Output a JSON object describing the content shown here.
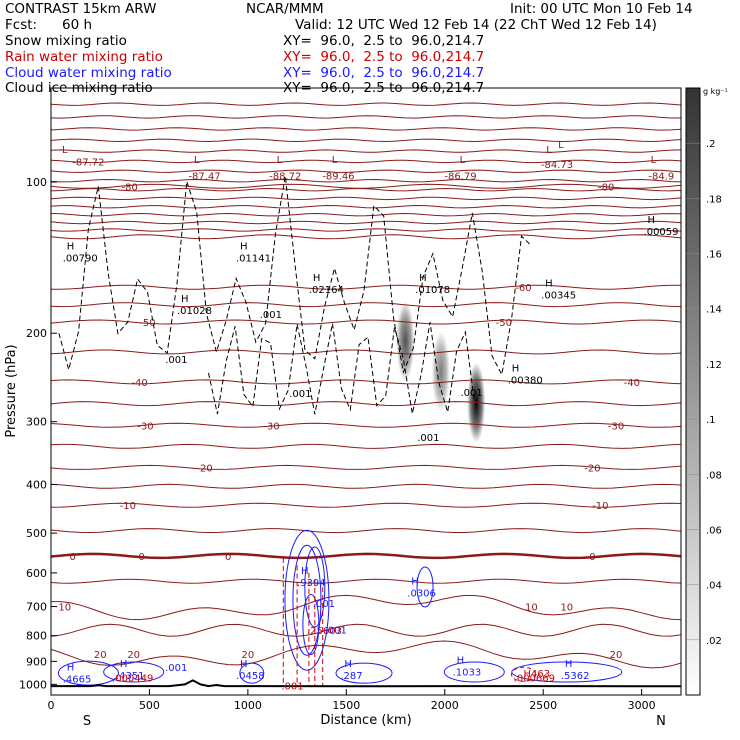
{
  "header": {
    "model": "CONTRAST 15km ARW",
    "center": "NCAR/MMM",
    "init": "Init: 00 UTC Mon 10 Feb 14",
    "fcst_label": "Fcst:",
    "fcst_value": "60 h",
    "valid": "Valid: 12 UTC Wed 12 Feb 14 (22 ChT Wed 12 Feb 14)",
    "fields": [
      {
        "name": "Snow mixing ratio",
        "xy": "XY=  96.0,  2.5 to  96.0,214.7"
      },
      {
        "name": "Rain water mixing ratio",
        "xy": "XY=  96.0,  2.5 to  96.0,214.7"
      },
      {
        "name": "Cloud water mixing ratio",
        "xy": "XY=  96.0,  2.5 to  96.0,214.7"
      },
      {
        "name": "Cloud ice mixing ratio",
        "xy": "XY=  96.0,  2.5 to  96.0,214.7"
      }
    ]
  },
  "colors": {
    "temperature": "#8b1a1a",
    "snow": "#000000",
    "rain": "#cc0000",
    "cloud_water": "#1a1aff"
  },
  "chart_data": {
    "type": "heatmap",
    "title": "Snow mixing ratio",
    "xlabel": "Distance (km)",
    "ylabel": "Pressure (hPa)",
    "xlim": [
      0,
      3200
    ],
    "ylim": [
      1050,
      65
    ],
    "y_scale": "log",
    "x_ticks": [
      0,
      500,
      1000,
      1500,
      2000,
      2500,
      3000
    ],
    "y_ticks": [
      100,
      200,
      300,
      400,
      500,
      600,
      700,
      800,
      900,
      1000
    ],
    "x_end_labels": [
      "S",
      "N"
    ],
    "colorbar": {
      "unit": "g kg⁻¹",
      "ticks": [
        0.02,
        0.04,
        0.06,
        0.08,
        0.1,
        0.12,
        0.14,
        0.16,
        0.18,
        0.2
      ],
      "tick_labels": [
        ".02",
        ".04",
        ".06",
        ".08",
        ".1",
        ".12",
        ".14",
        ".16",
        ".18",
        ".2"
      ],
      "max": 0.22
    },
    "snow_maxima": [
      {
        "x": 1800,
        "p": 200,
        "value": 0.12
      },
      {
        "x": 1980,
        "p": 230,
        "value": 0.08
      },
      {
        "x": 2160,
        "p": 265,
        "value": 0.19
      }
    ],
    "temperature_contours": [
      {
        "label": "-80",
        "p": 102,
        "labels_at": [
          400,
          2820
        ]
      },
      {
        "label": "-60",
        "p": 162,
        "labels_at": [
          2400
        ]
      },
      {
        "label": "-50",
        "p": 190,
        "labels_at": [
          490,
          2300
        ]
      },
      {
        "label": "-40",
        "p": 250,
        "labels_at": [
          450,
          2950
        ]
      },
      {
        "label": "-30",
        "p": 305,
        "labels_at": [
          480,
          1120,
          2870
        ]
      },
      {
        "label": "-20",
        "p": 370,
        "labels_at": [
          780,
          2750
        ]
      },
      {
        "label": "-10",
        "p": 440,
        "labels_at": [
          390,
          2790
        ]
      },
      {
        "label": "0",
        "p": 555,
        "labels_at": [
          110,
          460,
          900,
          2750
        ]
      },
      {
        "label": "10",
        "p": 700,
        "labels_at": [
          70,
          2440,
          2620
        ]
      },
      {
        "label": "20",
        "p": 870,
        "labels_at": [
          250,
          420,
          1000,
          2870
        ]
      }
    ],
    "contour_labels": {
      "minus": [
        "-80",
        "-60",
        "-50",
        "-40",
        "-30",
        "-20",
        "-10"
      ],
      "zero": "0",
      "plus": [
        "10",
        "20"
      ],
      "extra_positions": [
        {
          "text": "-87.72",
          "x": 190,
          "p": 91
        },
        {
          "text": "-87.47",
          "x": 780,
          "p": 97
        },
        {
          "text": "-88.72",
          "x": 1190,
          "p": 97
        },
        {
          "text": "-89.46",
          "x": 1460,
          "p": 97
        },
        {
          "text": "-86.79",
          "x": 2080,
          "p": 97
        },
        {
          "text": "-84.73",
          "x": 2570,
          "p": 92
        },
        {
          "text": "-84.9",
          "x": 3100,
          "p": 97
        }
      ]
    },
    "extrema": {
      "L_marks": [
        {
          "x": 70,
          "p": 86
        },
        {
          "x": 740,
          "p": 90
        },
        {
          "x": 1160,
          "p": 90
        },
        {
          "x": 1440,
          "p": 90
        },
        {
          "x": 2090,
          "p": 90
        },
        {
          "x": 2530,
          "p": 86
        },
        {
          "x": 2590,
          "p": 84
        },
        {
          "x": 3060,
          "p": 90
        }
      ],
      "snow_highs": [
        {
          "value": ".00790",
          "x": 80,
          "p": 140
        },
        {
          "value": ".01028",
          "x": 660,
          "p": 178
        },
        {
          "value": ".01141",
          "x": 960,
          "p": 140
        },
        {
          "value": ".02164",
          "x": 1330,
          "p": 162
        },
        {
          "value": ".01078",
          "x": 1870,
          "p": 162
        },
        {
          "value": ".00345",
          "x": 2510,
          "p": 166
        },
        {
          "value": ".00380",
          "x": 2340,
          "p": 245
        },
        {
          "value": ".00059",
          "x": 3030,
          "p": 124
        }
      ],
      "snow_low_labels": [
        {
          "value": ".001",
          "x": 580,
          "p": 225
        },
        {
          "value": ".001",
          "x": 1060,
          "p": 183
        },
        {
          "value": ".001",
          "x": 1210,
          "p": 263
        },
        {
          "value": ".001",
          "x": 1860,
          "p": 322
        },
        {
          "value": ".001",
          "x": 2080,
          "p": 262
        }
      ],
      "cloud_water_highs": [
        {
          "value": ".9394",
          "x": 1270,
          "p": 620
        },
        {
          "value": ".0306",
          "x": 1830,
          "p": 650
        },
        {
          "value": ".001",
          "x": 1350,
          "p": 683
        },
        {
          "value": ".001",
          "x": 1410,
          "p": 770
        },
        {
          "value": ".4665",
          "x": 80,
          "p": 965
        },
        {
          "value": ".4351",
          "x": 350,
          "p": 950
        },
        {
          "value": ".0458",
          "x": 960,
          "p": 950
        },
        {
          "value": ".287",
          "x": 1490,
          "p": 950
        },
        {
          "value": ".1033",
          "x": 2060,
          "p": 935
        },
        {
          "value": ".5362",
          "x": 2610,
          "p": 950
        },
        {
          "value": ".001",
          "x": 600,
          "p": 915
        }
      ],
      "rain_highs": [
        {
          "value": ".25603",
          "x": 1300,
          "p": 780
        },
        {
          "value": ".000449",
          "x": 310,
          "p": 968
        },
        {
          "value": "H463",
          "x": 2400,
          "p": 950
        },
        {
          "value": ".000669",
          "x": 2350,
          "p": 968
        },
        {
          "value": ".001",
          "x": 1170,
          "p": 1005
        }
      ]
    },
    "terrain": {
      "label": "surface",
      "x": [
        0,
        200,
        240,
        280,
        600,
        680,
        720,
        760,
        800,
        840,
        880,
        1000,
        1600,
        2000,
        2600,
        3200
      ],
      "p": [
        1008,
        1008,
        1004,
        1008,
        1008,
        1000,
        982,
        1000,
        1008,
        1003,
        1008,
        1008,
        1009,
        1008,
        1008,
        1009
      ]
    }
  }
}
